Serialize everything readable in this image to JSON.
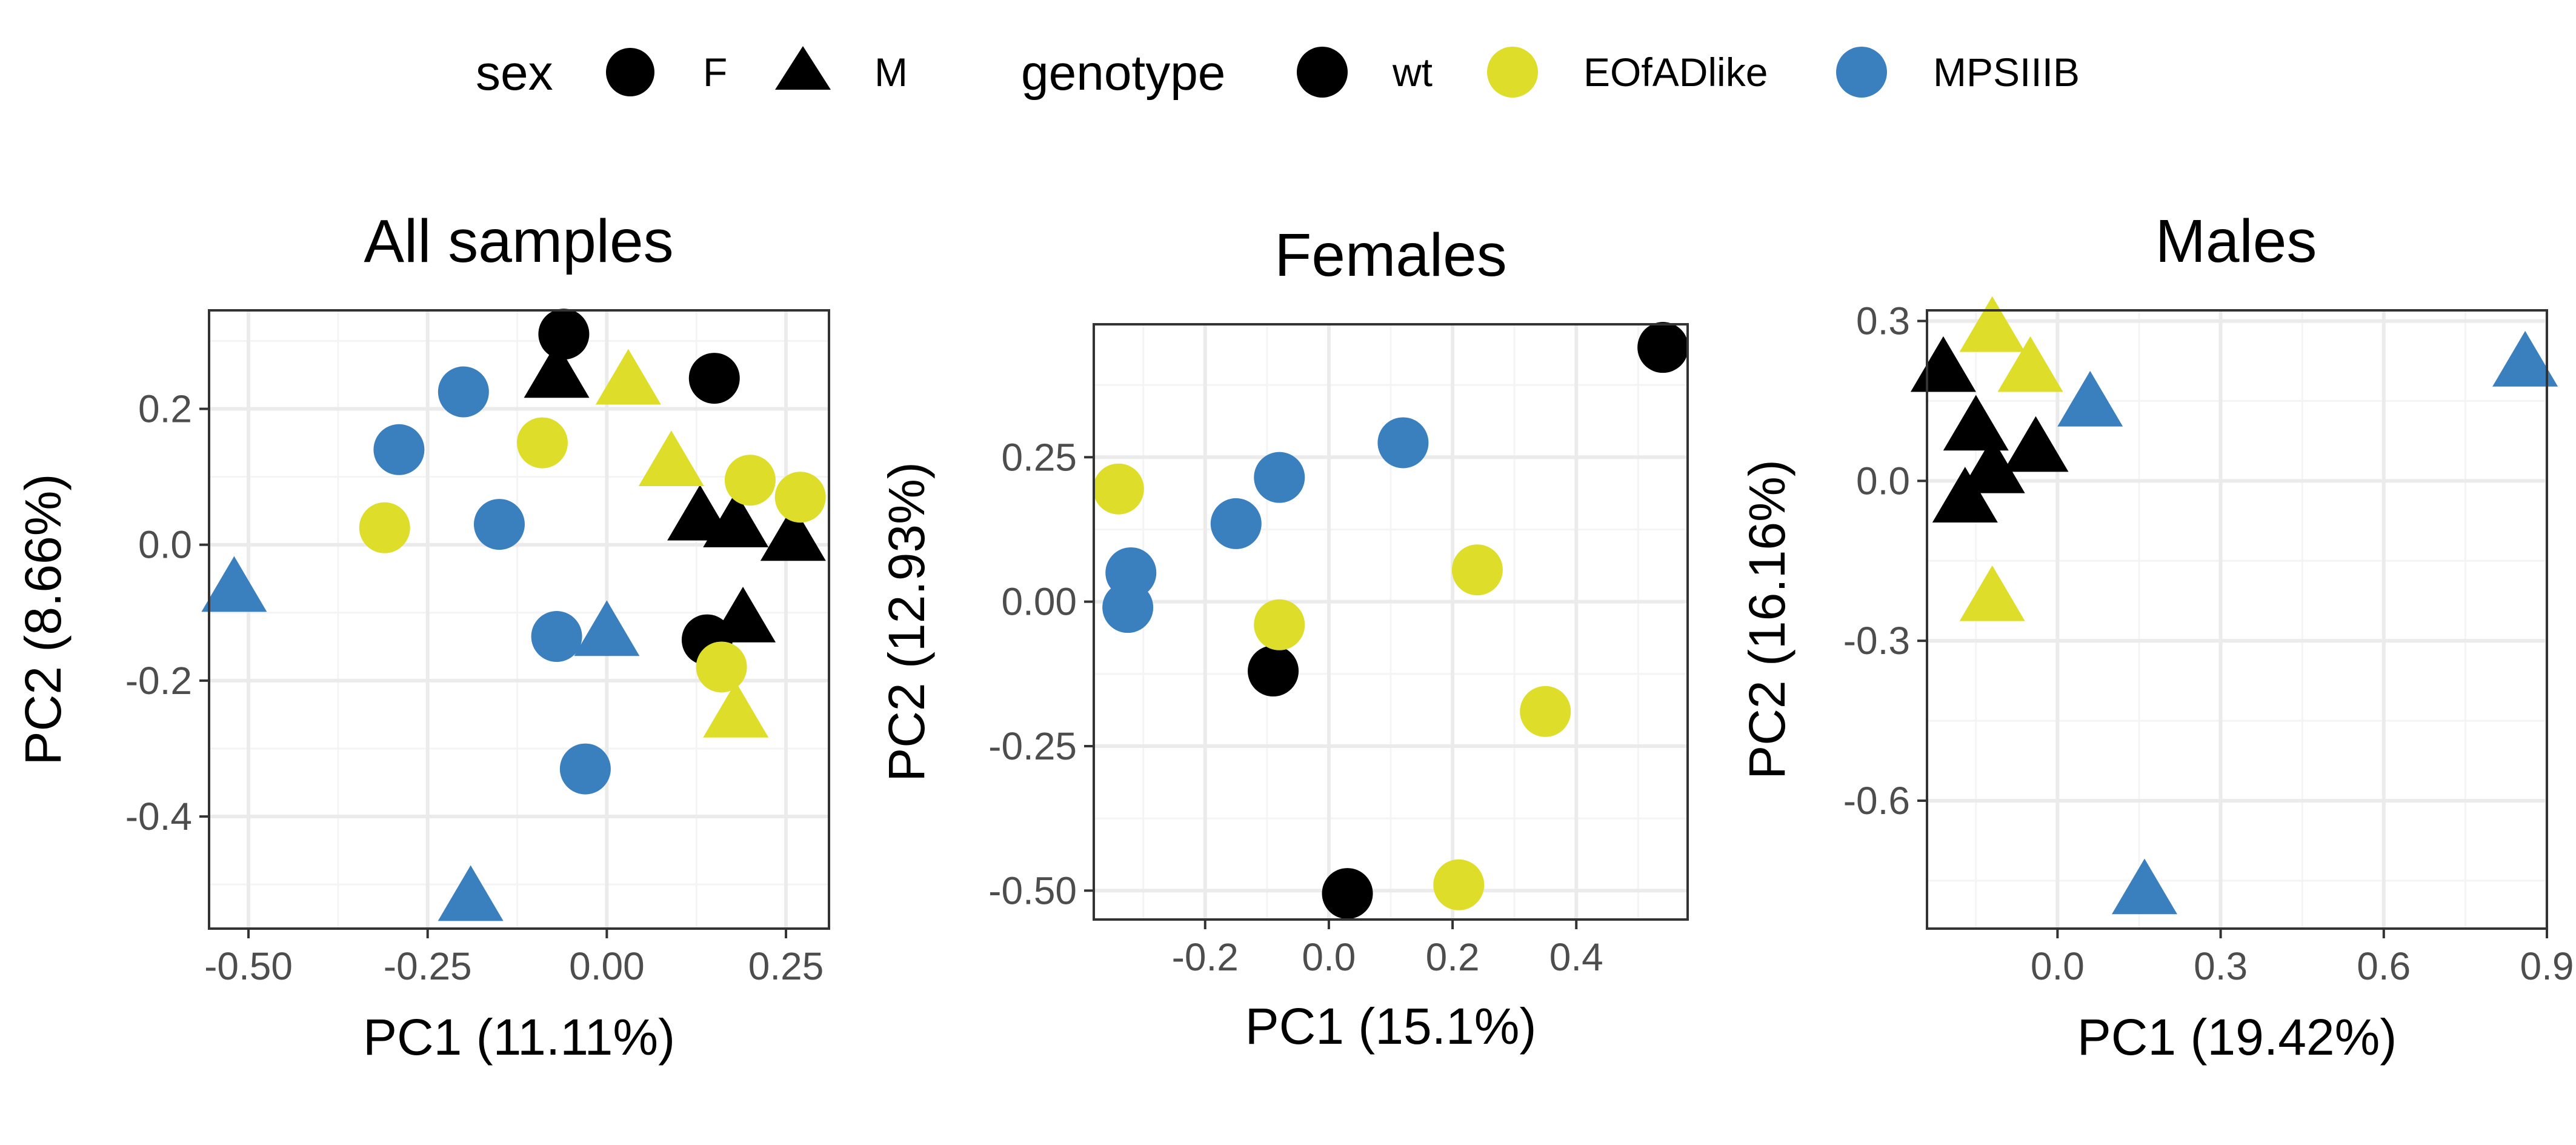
{
  "legend": {
    "sex": {
      "title": "sex",
      "entries": [
        {
          "label": "F",
          "shape": "circle"
        },
        {
          "label": "M",
          "shape": "triangle"
        }
      ]
    },
    "genotype": {
      "title": "genotype",
      "entries": [
        {
          "label": "wt",
          "color": "#000000"
        },
        {
          "label": "EOfADlike",
          "color": "#dddd2a"
        },
        {
          "label": "MPSIIIB",
          "color": "#3a80bf"
        }
      ]
    }
  },
  "chart_data": [
    {
      "type": "scatter",
      "title": "All samples",
      "xlabel": "PC1 (11.11%)",
      "ylabel": "PC2 (8.66%)",
      "xlim": [
        -0.555,
        0.31
      ],
      "ylim": [
        -0.565,
        0.345
      ],
      "xticks": [
        {
          "v": -0.5,
          "label": "-0.50"
        },
        {
          "v": -0.25,
          "label": "-0.25"
        },
        {
          "v": 0,
          "label": "0.00"
        },
        {
          "v": 0.25,
          "label": "0.25"
        }
      ],
      "yticks": [
        {
          "v": -0.4,
          "label": "-0.4"
        },
        {
          "v": -0.2,
          "label": "-0.2"
        },
        {
          "v": 0,
          "label": "0.0"
        },
        {
          "v": 0.2,
          "label": "0.2"
        }
      ],
      "grid": true,
      "points": [
        {
          "x": -0.06,
          "y": 0.31,
          "sex": "F",
          "genotype": "wt"
        },
        {
          "x": 0.15,
          "y": 0.245,
          "sex": "F",
          "genotype": "wt"
        },
        {
          "x": 0.14,
          "y": -0.14,
          "sex": "F",
          "genotype": "wt"
        },
        {
          "x": -0.07,
          "y": 0.25,
          "sex": "M",
          "genotype": "wt"
        },
        {
          "x": 0.13,
          "y": 0.04,
          "sex": "M",
          "genotype": "wt"
        },
        {
          "x": 0.18,
          "y": 0.03,
          "sex": "M",
          "genotype": "wt"
        },
        {
          "x": 0.26,
          "y": 0.01,
          "sex": "M",
          "genotype": "wt"
        },
        {
          "x": 0.19,
          "y": -0.11,
          "sex": "M",
          "genotype": "wt"
        },
        {
          "x": -0.09,
          "y": 0.15,
          "sex": "F",
          "genotype": "EOfADlike"
        },
        {
          "x": -0.31,
          "y": 0.025,
          "sex": "F",
          "genotype": "EOfADlike"
        },
        {
          "x": 0.2,
          "y": 0.095,
          "sex": "F",
          "genotype": "EOfADlike"
        },
        {
          "x": 0.27,
          "y": 0.07,
          "sex": "F",
          "genotype": "EOfADlike"
        },
        {
          "x": 0.16,
          "y": -0.18,
          "sex": "F",
          "genotype": "EOfADlike"
        },
        {
          "x": 0.03,
          "y": 0.24,
          "sex": "M",
          "genotype": "EOfADlike"
        },
        {
          "x": 0.09,
          "y": 0.12,
          "sex": "M",
          "genotype": "EOfADlike"
        },
        {
          "x": 0.18,
          "y": -0.25,
          "sex": "M",
          "genotype": "EOfADlike"
        },
        {
          "x": -0.2,
          "y": 0.225,
          "sex": "F",
          "genotype": "MPSIIIB"
        },
        {
          "x": -0.29,
          "y": 0.14,
          "sex": "F",
          "genotype": "MPSIIIB"
        },
        {
          "x": -0.15,
          "y": 0.03,
          "sex": "F",
          "genotype": "MPSIIIB"
        },
        {
          "x": -0.07,
          "y": -0.135,
          "sex": "F",
          "genotype": "MPSIIIB"
        },
        {
          "x": -0.03,
          "y": -0.33,
          "sex": "F",
          "genotype": "MPSIIIB"
        },
        {
          "x": -0.52,
          "y": -0.065,
          "sex": "M",
          "genotype": "MPSIIIB"
        },
        {
          "x": 0.0,
          "y": -0.13,
          "sex": "M",
          "genotype": "MPSIIIB"
        },
        {
          "x": -0.19,
          "y": -0.52,
          "sex": "M",
          "genotype": "MPSIIIB"
        }
      ]
    },
    {
      "type": "scatter",
      "title": "Females",
      "xlabel": "PC1 (15.1%)",
      "ylabel": "PC2 (12.93%)",
      "xlim": [
        -0.38,
        0.58
      ],
      "ylim": [
        -0.55,
        0.48
      ],
      "xticks": [
        {
          "v": -0.2,
          "label": "-0.2"
        },
        {
          "v": 0,
          "label": "0.0"
        },
        {
          "v": 0.2,
          "label": "0.2"
        },
        {
          "v": 0.4,
          "label": "0.4"
        }
      ],
      "yticks": [
        {
          "v": -0.5,
          "label": "-0.50"
        },
        {
          "v": -0.25,
          "label": "-0.25"
        },
        {
          "v": 0,
          "label": "0.00"
        },
        {
          "v": 0.25,
          "label": "0.25"
        }
      ],
      "grid": true,
      "points": [
        {
          "x": 0.54,
          "y": 0.44,
          "sex": "F",
          "genotype": "wt"
        },
        {
          "x": -0.09,
          "y": -0.12,
          "sex": "F",
          "genotype": "wt"
        },
        {
          "x": 0.03,
          "y": -0.505,
          "sex": "F",
          "genotype": "wt"
        },
        {
          "x": -0.34,
          "y": 0.195,
          "sex": "F",
          "genotype": "EOfADlike"
        },
        {
          "x": -0.08,
          "y": -0.04,
          "sex": "F",
          "genotype": "EOfADlike"
        },
        {
          "x": 0.24,
          "y": 0.055,
          "sex": "F",
          "genotype": "EOfADlike"
        },
        {
          "x": 0.35,
          "y": -0.19,
          "sex": "F",
          "genotype": "EOfADlike"
        },
        {
          "x": 0.21,
          "y": -0.49,
          "sex": "F",
          "genotype": "EOfADlike"
        },
        {
          "x": 0.12,
          "y": 0.275,
          "sex": "F",
          "genotype": "MPSIIIB"
        },
        {
          "x": -0.08,
          "y": 0.215,
          "sex": "F",
          "genotype": "MPSIIIB"
        },
        {
          "x": -0.15,
          "y": 0.135,
          "sex": "F",
          "genotype": "MPSIIIB"
        },
        {
          "x": -0.32,
          "y": 0.05,
          "sex": "F",
          "genotype": "MPSIIIB"
        },
        {
          "x": -0.325,
          "y": -0.01,
          "sex": "F",
          "genotype": "MPSIIIB"
        }
      ]
    },
    {
      "type": "scatter",
      "title": "Males",
      "xlabel": "PC1 (19.42%)",
      "ylabel": "PC2 (16.16%)",
      "xlim": [
        -0.24,
        0.9
      ],
      "ylim": [
        -0.84,
        0.32
      ],
      "xticks": [
        {
          "v": 0,
          "label": "0.0"
        },
        {
          "v": 0.3,
          "label": "0.3"
        },
        {
          "v": 0.6,
          "label": "0.6"
        },
        {
          "v": 0.9,
          "label": "0.9"
        }
      ],
      "yticks": [
        {
          "v": -0.6,
          "label": "-0.6"
        },
        {
          "v": -0.3,
          "label": "-0.3"
        },
        {
          "v": 0,
          "label": "0.0"
        },
        {
          "v": 0.3,
          "label": "0.3"
        }
      ],
      "grid": true,
      "points": [
        {
          "x": -0.21,
          "y": 0.21,
          "sex": "M",
          "genotype": "wt"
        },
        {
          "x": -0.15,
          "y": 0.1,
          "sex": "M",
          "genotype": "wt"
        },
        {
          "x": -0.04,
          "y": 0.06,
          "sex": "M",
          "genotype": "wt"
        },
        {
          "x": -0.12,
          "y": 0.02,
          "sex": "M",
          "genotype": "wt"
        },
        {
          "x": -0.17,
          "y": -0.035,
          "sex": "M",
          "genotype": "wt"
        },
        {
          "x": -0.12,
          "y": 0.285,
          "sex": "M",
          "genotype": "EOfADlike"
        },
        {
          "x": -0.05,
          "y": 0.21,
          "sex": "M",
          "genotype": "EOfADlike"
        },
        {
          "x": -0.12,
          "y": -0.22,
          "sex": "M",
          "genotype": "EOfADlike"
        },
        {
          "x": 0.06,
          "y": 0.145,
          "sex": "M",
          "genotype": "MPSIIIB"
        },
        {
          "x": 0.86,
          "y": 0.22,
          "sex": "M",
          "genotype": "MPSIIIB"
        },
        {
          "x": 0.16,
          "y": -0.77,
          "sex": "M",
          "genotype": "MPSIIIB"
        }
      ]
    }
  ]
}
